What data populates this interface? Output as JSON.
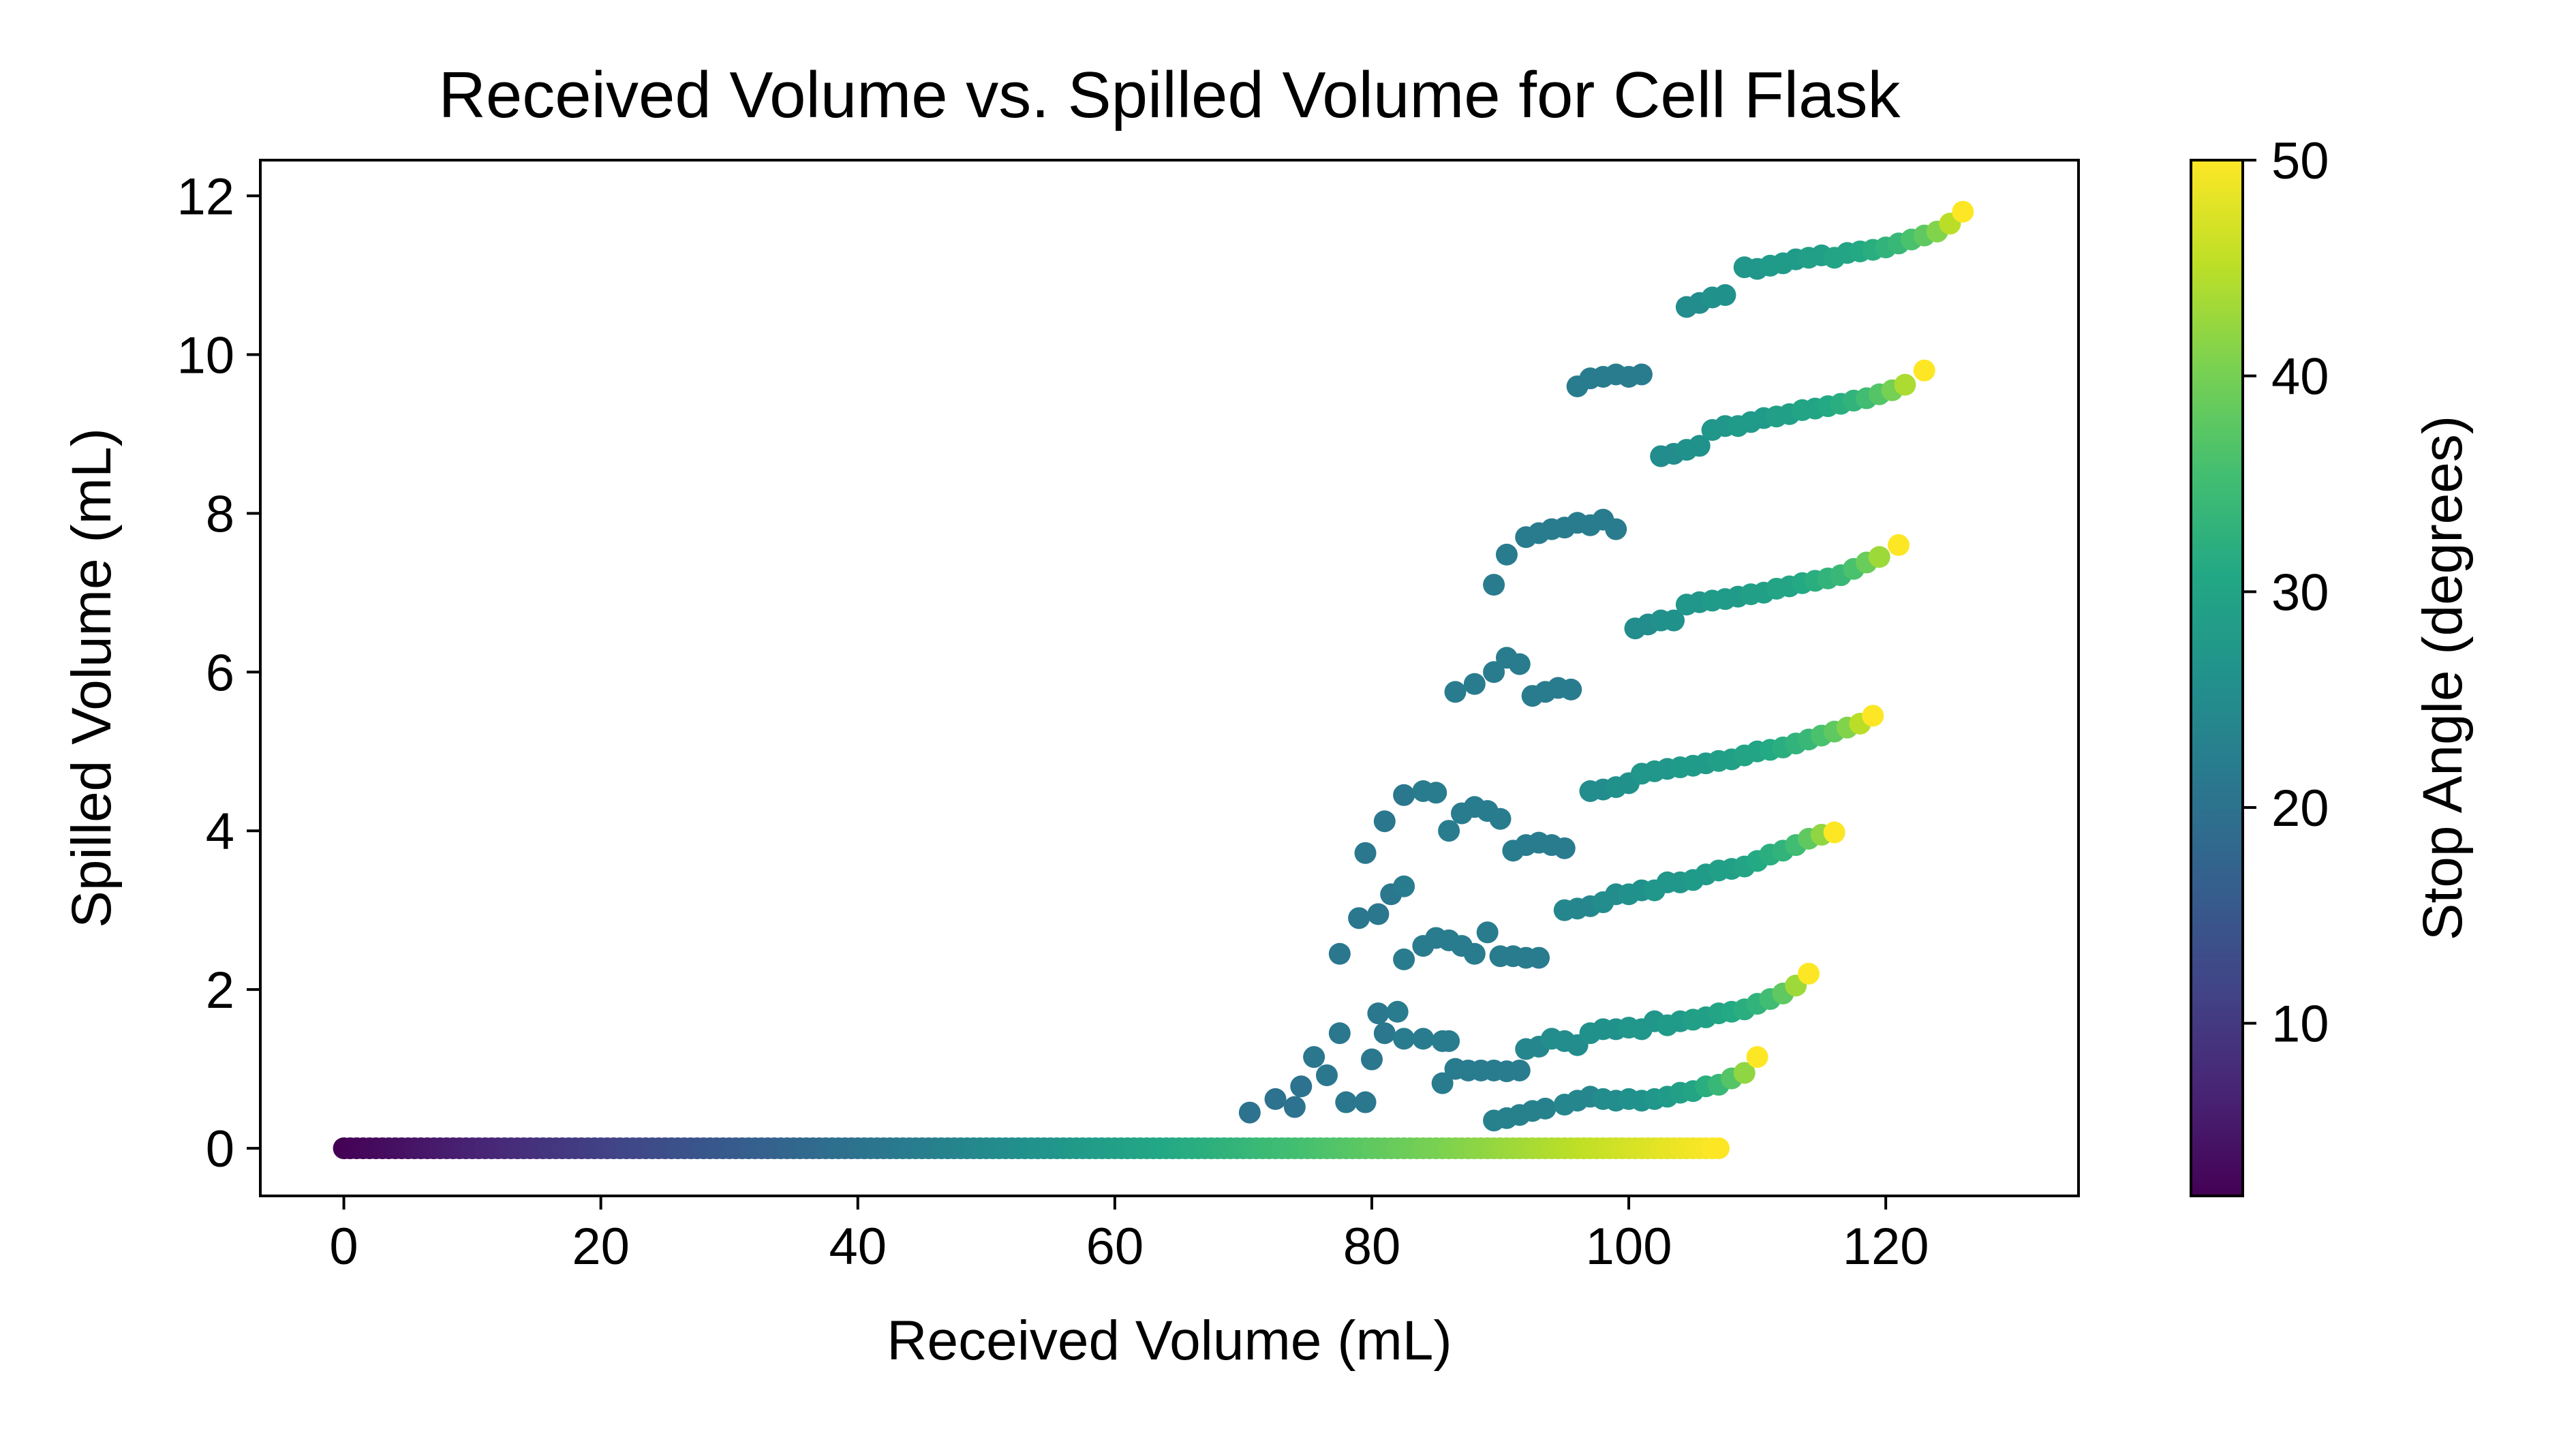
{
  "chart_data": {
    "type": "scatter",
    "title": "Received Volume vs. Spilled Volume for Cell Flask",
    "xlabel": "Received Volume (mL)",
    "ylabel": "Spilled Volume (mL)",
    "xlim": [
      -6.5,
      135
    ],
    "ylim": [
      -0.6,
      12.45
    ],
    "xticks": [
      0,
      20,
      40,
      60,
      80,
      100,
      120
    ],
    "yticks": [
      0,
      2,
      4,
      6,
      8,
      10,
      12
    ],
    "grid": false,
    "colormap": "viridis",
    "colorbar": {
      "label": "Stop Angle (degrees)",
      "range": [
        2,
        50
      ],
      "ticks": [
        10,
        20,
        30,
        40,
        50
      ]
    },
    "baseline": {
      "x_start": 0,
      "x_end": 107,
      "y": 0,
      "angle_start": 2,
      "angle_end": 50
    },
    "series": [
      {
        "points": [
          [
            70.5,
            0.45,
            20
          ],
          [
            72.5,
            0.62,
            20
          ],
          [
            74,
            0.52,
            20
          ],
          [
            74.5,
            0.78,
            20
          ],
          [
            75.5,
            1.15,
            21
          ],
          [
            76.5,
            0.92,
            21
          ],
          [
            77.5,
            1.45,
            21
          ],
          [
            78,
            0.58,
            21
          ],
          [
            79.5,
            0.58,
            21
          ],
          [
            80,
            1.12,
            21
          ],
          [
            80.5,
            1.7,
            21
          ],
          [
            81,
            1.45,
            21
          ],
          [
            82,
            1.72,
            22
          ],
          [
            82.5,
            1.38,
            22
          ],
          [
            84,
            1.38,
            22
          ],
          [
            85.5,
            1.35,
            22
          ],
          [
            86,
            1.35,
            22
          ],
          [
            85.5,
            0.82,
            22
          ],
          [
            86.5,
            1.0,
            22
          ],
          [
            87.5,
            0.98,
            22
          ],
          [
            88.5,
            0.98,
            22
          ],
          [
            89.5,
            0.98,
            22
          ],
          [
            90.5,
            0.97,
            22
          ],
          [
            91.5,
            0.98,
            22
          ],
          [
            89.5,
            0.35,
            23
          ],
          [
            90.5,
            0.38,
            23
          ],
          [
            91.5,
            0.42,
            23
          ],
          [
            92.5,
            0.47,
            23
          ],
          [
            93.5,
            0.5,
            23
          ],
          [
            95,
            0.55,
            24
          ],
          [
            96,
            0.6,
            24
          ],
          [
            97,
            0.65,
            24
          ],
          [
            98,
            0.62,
            25
          ],
          [
            99,
            0.6,
            25
          ],
          [
            100,
            0.62,
            26
          ],
          [
            101,
            0.6,
            26
          ],
          [
            102,
            0.62,
            27
          ],
          [
            103,
            0.65,
            28
          ],
          [
            104,
            0.7,
            29
          ],
          [
            105,
            0.72,
            30
          ],
          [
            106,
            0.78,
            32
          ],
          [
            107,
            0.8,
            34
          ],
          [
            108,
            0.88,
            37
          ],
          [
            109,
            0.95,
            42
          ],
          [
            110,
            1.15,
            50
          ]
        ]
      },
      {
        "points": [
          [
            77.5,
            2.45,
            21
          ],
          [
            79,
            2.9,
            21
          ],
          [
            80.5,
            2.95,
            21
          ],
          [
            81.5,
            3.2,
            21
          ],
          [
            82.5,
            3.3,
            22
          ],
          [
            82.5,
            2.38,
            22
          ],
          [
            84,
            2.55,
            22
          ],
          [
            85,
            2.65,
            22
          ],
          [
            86,
            2.62,
            22
          ],
          [
            87,
            2.55,
            22
          ],
          [
            88,
            2.45,
            22
          ],
          [
            89,
            2.72,
            22
          ],
          [
            90,
            2.42,
            22
          ],
          [
            91,
            2.42,
            22
          ],
          [
            92,
            2.4,
            22
          ],
          [
            93,
            2.4,
            22
          ],
          [
            92,
            1.25,
            24
          ],
          [
            93,
            1.28,
            24
          ],
          [
            94,
            1.38,
            25
          ],
          [
            95,
            1.35,
            25
          ],
          [
            96,
            1.3,
            25
          ],
          [
            97,
            1.45,
            26
          ],
          [
            98,
            1.5,
            26
          ],
          [
            99,
            1.5,
            26
          ],
          [
            100,
            1.52,
            27
          ],
          [
            101,
            1.5,
            27
          ],
          [
            102,
            1.6,
            27
          ],
          [
            103,
            1.55,
            28
          ],
          [
            104,
            1.6,
            28
          ],
          [
            105,
            1.62,
            29
          ],
          [
            106,
            1.65,
            29
          ],
          [
            107,
            1.7,
            30
          ],
          [
            108,
            1.72,
            31
          ],
          [
            109,
            1.75,
            32
          ],
          [
            110,
            1.82,
            33
          ],
          [
            111,
            1.88,
            35
          ],
          [
            112,
            1.95,
            38
          ],
          [
            113,
            2.05,
            43
          ],
          [
            114,
            2.2,
            50
          ]
        ]
      },
      {
        "points": [
          [
            79.5,
            3.72,
            21
          ],
          [
            81,
            4.12,
            21
          ],
          [
            82.5,
            4.45,
            21
          ],
          [
            84,
            4.5,
            22
          ],
          [
            85,
            4.48,
            22
          ],
          [
            86,
            4.0,
            22
          ],
          [
            87,
            4.22,
            22
          ],
          [
            88,
            4.3,
            22
          ],
          [
            89,
            4.25,
            22
          ],
          [
            90,
            4.15,
            22
          ],
          [
            91,
            3.75,
            22
          ],
          [
            92,
            3.82,
            22
          ],
          [
            93,
            3.85,
            22
          ],
          [
            94,
            3.82,
            22
          ],
          [
            95,
            3.78,
            22
          ],
          [
            95,
            3.0,
            24
          ],
          [
            96,
            3.02,
            24
          ],
          [
            97,
            3.05,
            24
          ],
          [
            98,
            3.1,
            25
          ],
          [
            99,
            3.2,
            25
          ],
          [
            100,
            3.2,
            26
          ],
          [
            101,
            3.25,
            26
          ],
          [
            102,
            3.25,
            27
          ],
          [
            103,
            3.35,
            27
          ],
          [
            104,
            3.35,
            27
          ],
          [
            105,
            3.38,
            28
          ],
          [
            106,
            3.45,
            28
          ],
          [
            107,
            3.5,
            29
          ],
          [
            108,
            3.52,
            29
          ],
          [
            109,
            3.55,
            30
          ],
          [
            110,
            3.62,
            31
          ],
          [
            111,
            3.7,
            32
          ],
          [
            112,
            3.75,
            33
          ],
          [
            113,
            3.82,
            35
          ],
          [
            114,
            3.9,
            38
          ],
          [
            115,
            3.95,
            42
          ],
          [
            116,
            3.98,
            50
          ]
        ]
      },
      {
        "points": [
          [
            86.5,
            5.75,
            22
          ],
          [
            88,
            5.85,
            22
          ],
          [
            89.5,
            6.0,
            22
          ],
          [
            90.5,
            6.18,
            22
          ],
          [
            91.5,
            6.1,
            22
          ],
          [
            92.5,
            5.7,
            22
          ],
          [
            93.5,
            5.75,
            22
          ],
          [
            94.5,
            5.8,
            22
          ],
          [
            95.5,
            5.78,
            22
          ],
          [
            97,
            4.5,
            25
          ],
          [
            98,
            4.52,
            25
          ],
          [
            99,
            4.55,
            26
          ],
          [
            100,
            4.6,
            26
          ],
          [
            101,
            4.72,
            27
          ],
          [
            102,
            4.75,
            27
          ],
          [
            103,
            4.78,
            27
          ],
          [
            104,
            4.8,
            28
          ],
          [
            105,
            4.82,
            28
          ],
          [
            106,
            4.85,
            28
          ],
          [
            107,
            4.88,
            29
          ],
          [
            108,
            4.9,
            29
          ],
          [
            109,
            4.95,
            30
          ],
          [
            110,
            5.0,
            30
          ],
          [
            111,
            5.02,
            31
          ],
          [
            112,
            5.05,
            32
          ],
          [
            113,
            5.1,
            33
          ],
          [
            114,
            5.15,
            34
          ],
          [
            115,
            5.2,
            36
          ],
          [
            116,
            5.25,
            38
          ],
          [
            117,
            5.3,
            41
          ],
          [
            118,
            5.35,
            45
          ],
          [
            119,
            5.45,
            50
          ]
        ]
      },
      {
        "points": [
          [
            89.5,
            7.1,
            22
          ],
          [
            90.5,
            7.48,
            22
          ],
          [
            92,
            7.7,
            22
          ],
          [
            93,
            7.75,
            22
          ],
          [
            94,
            7.8,
            22
          ],
          [
            95,
            7.82,
            22
          ],
          [
            96,
            7.88,
            22
          ],
          [
            97,
            7.85,
            22
          ],
          [
            98,
            7.92,
            22
          ],
          [
            99,
            7.8,
            22
          ],
          [
            100.5,
            6.55,
            25
          ],
          [
            101.5,
            6.6,
            25
          ],
          [
            102.5,
            6.65,
            26
          ],
          [
            103.5,
            6.65,
            26
          ],
          [
            104.5,
            6.85,
            27
          ],
          [
            105.5,
            6.88,
            27
          ],
          [
            106.5,
            6.9,
            28
          ],
          [
            107.5,
            6.92,
            28
          ],
          [
            108.5,
            6.95,
            28
          ],
          [
            109.5,
            6.98,
            29
          ],
          [
            110.5,
            7.0,
            29
          ],
          [
            111.5,
            7.05,
            30
          ],
          [
            112.5,
            7.08,
            30
          ],
          [
            113.5,
            7.12,
            31
          ],
          [
            114.5,
            7.15,
            32
          ],
          [
            115.5,
            7.18,
            33
          ],
          [
            116.5,
            7.22,
            34
          ],
          [
            117.5,
            7.3,
            36
          ],
          [
            118.5,
            7.38,
            39
          ],
          [
            119.5,
            7.45,
            43
          ],
          [
            121,
            7.6,
            50
          ]
        ]
      },
      {
        "points": [
          [
            96,
            9.6,
            22
          ],
          [
            97,
            9.7,
            22
          ],
          [
            98,
            9.72,
            22
          ],
          [
            99,
            9.75,
            22
          ],
          [
            100,
            9.72,
            22
          ],
          [
            101,
            9.75,
            22
          ],
          [
            102.5,
            8.72,
            25
          ],
          [
            103.5,
            8.75,
            25
          ],
          [
            104.5,
            8.8,
            26
          ],
          [
            105.5,
            8.85,
            26
          ],
          [
            106.5,
            9.05,
            27
          ],
          [
            107.5,
            9.1,
            27
          ],
          [
            108.5,
            9.1,
            28
          ],
          [
            109.5,
            9.15,
            28
          ],
          [
            110.5,
            9.2,
            28
          ],
          [
            111.5,
            9.22,
            29
          ],
          [
            112.5,
            9.25,
            29
          ],
          [
            113.5,
            9.3,
            30
          ],
          [
            114.5,
            9.32,
            30
          ],
          [
            115.5,
            9.35,
            31
          ],
          [
            116.5,
            9.38,
            32
          ],
          [
            117.5,
            9.42,
            33
          ],
          [
            118.5,
            9.45,
            35
          ],
          [
            119.5,
            9.5,
            37
          ],
          [
            120.5,
            9.55,
            40
          ],
          [
            121.5,
            9.62,
            44
          ],
          [
            123,
            9.8,
            50
          ]
        ]
      },
      {
        "points": [
          [
            104.5,
            10.6,
            25
          ],
          [
            105.5,
            10.65,
            25
          ],
          [
            106.5,
            10.72,
            26
          ],
          [
            107.5,
            10.75,
            26
          ],
          [
            109,
            11.1,
            27
          ],
          [
            110,
            11.08,
            27
          ],
          [
            111,
            11.12,
            28
          ],
          [
            112,
            11.15,
            28
          ],
          [
            113,
            11.2,
            28
          ],
          [
            114,
            11.22,
            29
          ],
          [
            115,
            11.25,
            29
          ],
          [
            116,
            11.22,
            30
          ],
          [
            117,
            11.28,
            30
          ],
          [
            118,
            11.3,
            31
          ],
          [
            119,
            11.32,
            32
          ],
          [
            120,
            11.35,
            33
          ],
          [
            121,
            11.4,
            34
          ],
          [
            122,
            11.45,
            36
          ],
          [
            123,
            11.5,
            38
          ],
          [
            124,
            11.55,
            41
          ],
          [
            125,
            11.65,
            45
          ],
          [
            126,
            11.8,
            50
          ]
        ]
      }
    ]
  }
}
